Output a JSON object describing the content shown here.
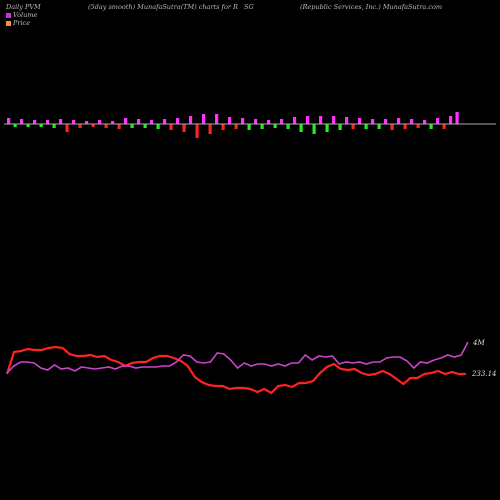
{
  "header": {
    "left": "Daily PVM",
    "middle": "(5day smooth) MunafaSutra(TM) charts for R",
    "middle2": "SG",
    "right": "(Republic Services, Inc.) MunafaSutra.com"
  },
  "legend": [
    {
      "label": "Volume",
      "color": "#cc33cc"
    },
    {
      "label": "Price",
      "color": "#ff8844"
    }
  ],
  "colors": {
    "positive": "#ff33ff",
    "negative_red": "#ff2222",
    "negative_green": "#22ee22",
    "volume_line": "#cc44cc",
    "price_line": "#ff2222",
    "axis": "#aaaaaa"
  },
  "chart_data": {
    "type": "line",
    "title": "Daily PVM",
    "pvm_bars": [
      {
        "v": 6,
        "c": "pos"
      },
      {
        "v": -3,
        "c": "grn"
      },
      {
        "v": 5,
        "c": "pos"
      },
      {
        "v": -3,
        "c": "grn"
      },
      {
        "v": 4,
        "c": "pos"
      },
      {
        "v": -3,
        "c": "grn"
      },
      {
        "v": 4,
        "c": "pos"
      },
      {
        "v": -4,
        "c": "grn"
      },
      {
        "v": 5,
        "c": "pos"
      },
      {
        "v": -8,
        "c": "red"
      },
      {
        "v": 4,
        "c": "pos"
      },
      {
        "v": -4,
        "c": "red"
      },
      {
        "v": 3,
        "c": "pos"
      },
      {
        "v": -3,
        "c": "red"
      },
      {
        "v": 4,
        "c": "pos"
      },
      {
        "v": -4,
        "c": "red"
      },
      {
        "v": 3,
        "c": "pos"
      },
      {
        "v": -5,
        "c": "red"
      },
      {
        "v": 6,
        "c": "pos"
      },
      {
        "v": -4,
        "c": "grn"
      },
      {
        "v": 5,
        "c": "pos"
      },
      {
        "v": -4,
        "c": "grn"
      },
      {
        "v": 4,
        "c": "pos"
      },
      {
        "v": -5,
        "c": "grn"
      },
      {
        "v": 5,
        "c": "pos"
      },
      {
        "v": -6,
        "c": "red"
      },
      {
        "v": 6,
        "c": "pos"
      },
      {
        "v": -8,
        "c": "red"
      },
      {
        "v": 8,
        "c": "pos"
      },
      {
        "v": -14,
        "c": "red"
      },
      {
        "v": 10,
        "c": "pos"
      },
      {
        "v": -10,
        "c": "red"
      },
      {
        "v": 10,
        "c": "pos"
      },
      {
        "v": -6,
        "c": "red"
      },
      {
        "v": 7,
        "c": "pos"
      },
      {
        "v": -5,
        "c": "red"
      },
      {
        "v": 6,
        "c": "pos"
      },
      {
        "v": -6,
        "c": "grn"
      },
      {
        "v": 5,
        "c": "pos"
      },
      {
        "v": -5,
        "c": "grn"
      },
      {
        "v": 4,
        "c": "pos"
      },
      {
        "v": -4,
        "c": "grn"
      },
      {
        "v": 5,
        "c": "pos"
      },
      {
        "v": -5,
        "c": "grn"
      },
      {
        "v": 7,
        "c": "pos"
      },
      {
        "v": -8,
        "c": "grn"
      },
      {
        "v": 8,
        "c": "pos"
      },
      {
        "v": -10,
        "c": "grn"
      },
      {
        "v": 8,
        "c": "pos"
      },
      {
        "v": -8,
        "c": "grn"
      },
      {
        "v": 8,
        "c": "pos"
      },
      {
        "v": -6,
        "c": "grn"
      },
      {
        "v": 7,
        "c": "pos"
      },
      {
        "v": -5,
        "c": "red"
      },
      {
        "v": 6,
        "c": "pos"
      },
      {
        "v": -5,
        "c": "grn"
      },
      {
        "v": 5,
        "c": "pos"
      },
      {
        "v": -5,
        "c": "grn"
      },
      {
        "v": 5,
        "c": "pos"
      },
      {
        "v": -6,
        "c": "red"
      },
      {
        "v": 6,
        "c": "pos"
      },
      {
        "v": -5,
        "c": "red"
      },
      {
        "v": 5,
        "c": "pos"
      },
      {
        "v": -4,
        "c": "red"
      },
      {
        "v": 4,
        "c": "pos"
      },
      {
        "v": -5,
        "c": "grn"
      },
      {
        "v": 6,
        "c": "pos"
      },
      {
        "v": -5,
        "c": "red"
      },
      {
        "v": 8,
        "c": "pos"
      },
      {
        "v": 12,
        "c": "pos"
      }
    ],
    "volume_series": {
      "name": "Volume",
      "values": [
        373,
        366,
        362,
        362,
        363,
        368,
        370,
        365,
        369,
        368,
        371,
        367,
        368,
        369,
        368,
        367,
        369,
        366,
        366,
        368,
        367,
        367,
        367,
        366,
        366,
        362,
        355,
        356,
        362,
        363,
        362,
        353,
        354,
        360,
        368,
        363,
        366,
        364,
        364,
        366,
        364,
        366,
        363,
        363,
        355,
        360,
        356,
        357,
        356,
        364,
        362,
        363,
        362,
        364,
        362,
        362,
        358,
        357,
        357,
        361,
        368,
        362,
        363,
        360,
        358,
        355,
        357,
        355,
        342
      ],
      "end_label": "4M"
    },
    "price_series": {
      "name": "Price",
      "values": [
        374,
        352,
        351,
        349,
        350,
        350,
        348,
        347,
        348,
        354,
        356,
        356,
        355,
        357,
        356,
        360,
        362,
        366,
        363,
        362,
        362,
        358,
        356,
        356,
        358,
        361,
        366,
        377,
        382,
        385,
        386,
        386,
        389,
        388,
        388,
        389,
        392,
        389,
        393,
        386,
        385,
        387,
        383,
        383,
        381,
        373,
        367,
        364,
        369,
        370,
        369,
        373,
        375,
        374,
        371,
        374,
        379,
        384,
        378,
        378,
        374,
        373,
        371,
        374,
        372,
        374,
        374
      ],
      "end_label": "233.14"
    },
    "ylim": [
      0,
      500
    ]
  }
}
